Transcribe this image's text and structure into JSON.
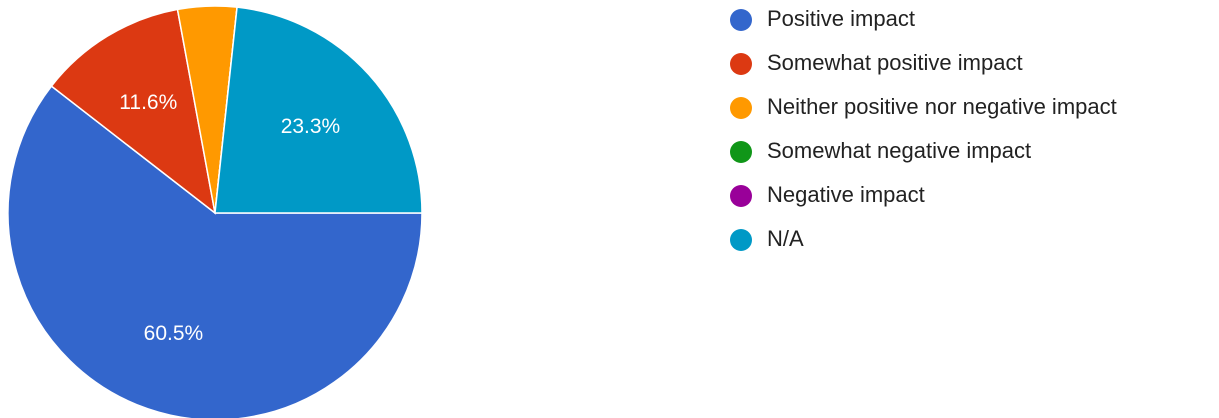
{
  "chart_data": {
    "type": "pie",
    "categories": [
      "Positive impact",
      "Somewhat positive impact",
      "Neither positive nor negative impact",
      "Somewhat negative impact",
      "Negative impact",
      "N/A"
    ],
    "values": [
      60.5,
      11.6,
      4.6,
      0,
      0,
      23.3
    ],
    "value_labels": [
      "60.5%",
      "11.6%",
      null,
      null,
      null,
      "23.3%"
    ],
    "colors": [
      "#3366cc",
      "#dc3912",
      "#ff9900",
      "#109618",
      "#990099",
      "#0099c6"
    ],
    "legend": "right"
  }
}
